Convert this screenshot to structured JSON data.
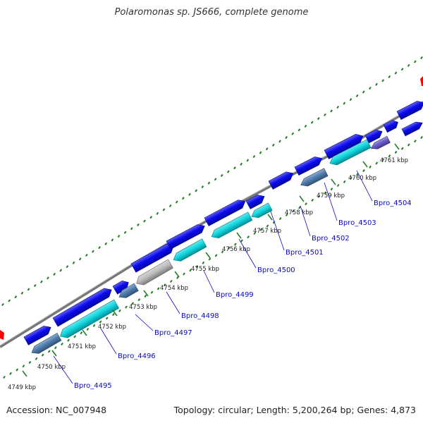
{
  "title": "Polaromonas sp. JS666, complete genome",
  "accession": "Accession: NC_007948",
  "topology": "Topology: circular; Length: 5,200,264 bp; Genes: 4,873",
  "colors": {
    "forward": "#0a0af0",
    "reverse_steel": "#4f7fb0",
    "reverse_cyan": "#10d8e0",
    "gray": "#bdbdbd",
    "purple": "#6a5ad0",
    "red": "#ff0000",
    "tick": "#1e7a1e",
    "label": "#0a0ac8",
    "backbone": "#777777"
  },
  "scale_labels": [
    "4749 kbp",
    "4750 kbp",
    "4751 kbp",
    "4752 kbp",
    "4753 kbp",
    "4754 kbp",
    "4755 kbp",
    "4756 kbp",
    "4757 kbp",
    "4758 kbp",
    "4759 kbp",
    "4760 kbp",
    "4761 kbp"
  ],
  "gene_labels": [
    "Bpro_4495",
    "Bpro_4496",
    "Bpro_4497",
    "Bpro_4498",
    "Bpro_4499",
    "Bpro_4500",
    "Bpro_4501",
    "Bpro_4502",
    "Bpro_4503",
    "Bpro_4504"
  ]
}
